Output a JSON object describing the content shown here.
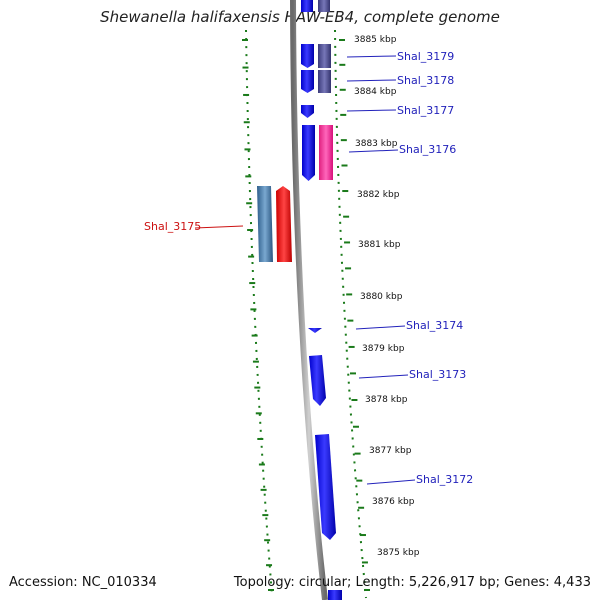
{
  "title": "Shewanella halifaxensis HAW-EB4, complete genome",
  "footer": {
    "accession": "Accession: NC_010334",
    "stats": "Topology: circular; Length: 5,226,917 bp; Genes: 4,433"
  },
  "colors": {
    "forward_gene": "#1a1aff",
    "forward_gene_dark": "#555599",
    "reverse_gene": "#ff1a1a",
    "reverse_gene_steel": "#4a7fb0",
    "pink_gene": "#ff33aa",
    "label_blue": "#2222bb",
    "label_red": "#cc1111",
    "tick_green": "#1a7a1a",
    "backbone": "#888888"
  },
  "kbp_labels": [
    "3885 kbp",
    "3884 kbp",
    "3883 kbp",
    "3882 kbp",
    "3881 kbp",
    "3880 kbp",
    "3879 kbp",
    "3878 kbp",
    "3877 kbp",
    "3876 kbp",
    "3875 kbp"
  ],
  "genes": [
    {
      "name": "Shal_3179",
      "strand": "+",
      "color_key": "forward_gene"
    },
    {
      "name": "Shal_3178",
      "strand": "+",
      "color_key": "forward_gene"
    },
    {
      "name": "Shal_3177",
      "strand": "+",
      "color_key": "forward_gene"
    },
    {
      "name": "Shal_3176",
      "strand": "+",
      "color_key": "forward_gene"
    },
    {
      "name": "Shal_3175",
      "strand": "-",
      "color_key": "reverse_gene"
    },
    {
      "name": "Shal_3174",
      "strand": "+",
      "color_key": "forward_gene"
    },
    {
      "name": "Shal_3173",
      "strand": "+",
      "color_key": "forward_gene"
    },
    {
      "name": "Shal_3172",
      "strand": "+",
      "color_key": "forward_gene"
    }
  ]
}
